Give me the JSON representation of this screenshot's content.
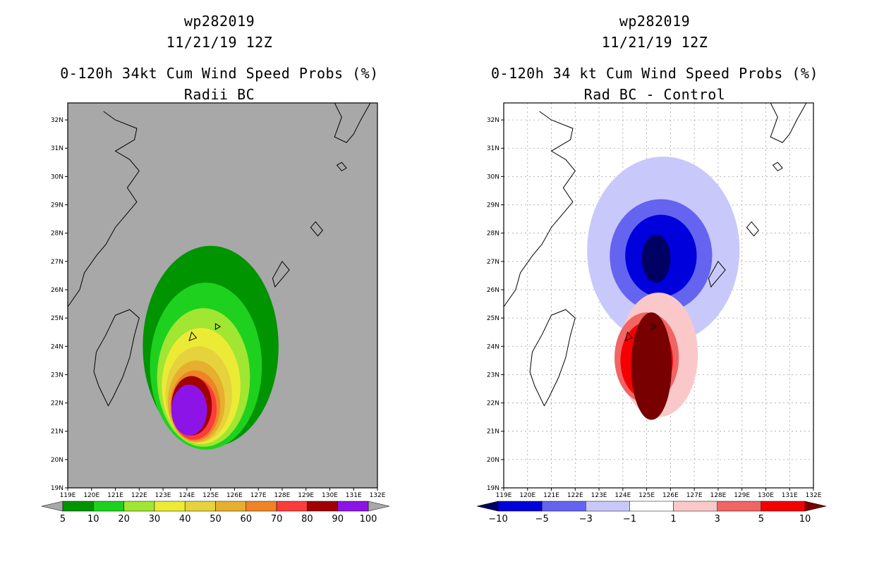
{
  "chart_data": [
    {
      "type": "contour-map",
      "storm_id": "wp282019",
      "date": "11/21/19 12Z",
      "title": "0-120h 34kt Cum Wind Speed Probs (%)",
      "subtitle": "Radii BC",
      "x_ticks": [
        "119E",
        "120E",
        "121E",
        "122E",
        "123E",
        "124E",
        "125E",
        "126E",
        "127E",
        "128E",
        "129E",
        "130E",
        "131E",
        "132E"
      ],
      "y_ticks": [
        "19N",
        "20N",
        "21N",
        "22N",
        "23N",
        "24N",
        "25N",
        "26N",
        "27N",
        "28N",
        "29N",
        "30N",
        "31N",
        "32N"
      ],
      "xlim": [
        119,
        132
      ],
      "ylim": [
        19,
        32.6
      ],
      "grid": false,
      "background": "#a8a8a8",
      "levels": [
        {
          "min": 5,
          "color": "#009400",
          "center": [
            125.0,
            24.0
          ],
          "radius": [
            2.85,
            3.55
          ]
        },
        {
          "min": 10,
          "color": "#1ed11e",
          "center": [
            124.8,
            23.3
          ],
          "radius": [
            2.35,
            2.95
          ]
        },
        {
          "min": 20,
          "color": "#a0e632",
          "center": [
            124.7,
            22.9
          ],
          "radius": [
            1.95,
            2.45
          ]
        },
        {
          "min": 30,
          "color": "#ebeb35",
          "center": [
            124.6,
            22.6
          ],
          "radius": [
            1.65,
            2.05
          ]
        },
        {
          "min": 40,
          "color": "#e6d23c",
          "center": [
            124.5,
            22.3
          ],
          "radius": [
            1.4,
            1.7
          ]
        },
        {
          "min": 50,
          "color": "#e6af2d",
          "center": [
            124.4,
            22.05
          ],
          "radius": [
            1.2,
            1.45
          ]
        },
        {
          "min": 60,
          "color": "#f08228",
          "center": [
            124.35,
            21.9
          ],
          "radius": [
            1.05,
            1.25
          ]
        },
        {
          "min": 70,
          "color": "#fa3c3c",
          "center": [
            124.3,
            21.8
          ],
          "radius": [
            0.95,
            1.1
          ]
        },
        {
          "min": 80,
          "color": "#a00000",
          "center": [
            124.2,
            21.9
          ],
          "radius": [
            0.85,
            1.05
          ]
        },
        {
          "min": 90,
          "color": "#8c14e6",
          "center": [
            124.1,
            21.75
          ],
          "radius": [
            0.75,
            0.9
          ]
        }
      ],
      "colorbar": {
        "labels": [
          "5",
          "10",
          "20",
          "30",
          "40",
          "50",
          "60",
          "70",
          "80",
          "90",
          "100"
        ],
        "colors": [
          "#009400",
          "#1ed11e",
          "#a0e632",
          "#ebeb35",
          "#e6d23c",
          "#e6af2d",
          "#f08228",
          "#fa3c3c",
          "#a00000",
          "#8c14e6"
        ],
        "under": "#a8a8a8",
        "over": "#a8a8a8"
      }
    },
    {
      "type": "contour-map",
      "storm_id": "wp282019",
      "date": "11/21/19 12Z",
      "title": "0-120h 34 kt Cum Wind Speed Probs (%)",
      "subtitle": "Rad BC - Control",
      "x_ticks": [
        "119E",
        "120E",
        "121E",
        "122E",
        "123E",
        "124E",
        "125E",
        "126E",
        "127E",
        "128E",
        "129E",
        "130E",
        "131E",
        "132E"
      ],
      "y_ticks": [
        "19N",
        "20N",
        "21N",
        "22N",
        "23N",
        "24N",
        "25N",
        "26N",
        "27N",
        "28N",
        "29N",
        "30N",
        "31N",
        "32N"
      ],
      "xlim": [
        119,
        132
      ],
      "ylim": [
        19,
        32.6
      ],
      "grid": true,
      "background": "#ffffff",
      "levels": [
        {
          "range": [
            -3,
            -1
          ],
          "color": "#c8c8fa",
          "center": [
            125.7,
            27.4
          ],
          "radius": [
            3.2,
            3.3
          ]
        },
        {
          "range": [
            -5,
            -3
          ],
          "color": "#6464f0",
          "center": [
            125.6,
            27.2
          ],
          "radius": [
            2.15,
            2.0
          ]
        },
        {
          "range": [
            -10,
            -5
          ],
          "color": "#0000dc",
          "center": [
            125.6,
            27.2
          ],
          "radius": [
            1.5,
            1.45
          ]
        },
        {
          "range": [
            null,
            -10
          ],
          "color": "#000064",
          "center": [
            125.4,
            27.1
          ],
          "radius": [
            0.6,
            0.85
          ]
        },
        {
          "range": [
            1,
            3
          ],
          "color": "#fac8c8",
          "center": [
            125.5,
            23.7
          ],
          "radius": [
            1.65,
            2.2
          ]
        },
        {
          "range": [
            3,
            5
          ],
          "color": "#f06464",
          "center": [
            125.0,
            23.6
          ],
          "radius": [
            1.35,
            1.6
          ]
        },
        {
          "range": [
            5,
            10
          ],
          "color": "#f50000",
          "center": [
            125.0,
            23.5
          ],
          "radius": [
            1.1,
            1.35
          ]
        },
        {
          "range": [
            10,
            null
          ],
          "color": "#780000",
          "center": [
            125.2,
            23.3
          ],
          "radius": [
            0.85,
            1.9
          ]
        }
      ],
      "colorbar": {
        "labels": [
          "−10",
          "−5",
          "−3",
          "−1",
          "1",
          "3",
          "5",
          "10"
        ],
        "colors": [
          "#0000dc",
          "#6464f0",
          "#c8c8fa",
          "#ffffff",
          "#fac8c8",
          "#f06464",
          "#f50000"
        ],
        "under": "#000064",
        "over": "#780000"
      }
    }
  ]
}
